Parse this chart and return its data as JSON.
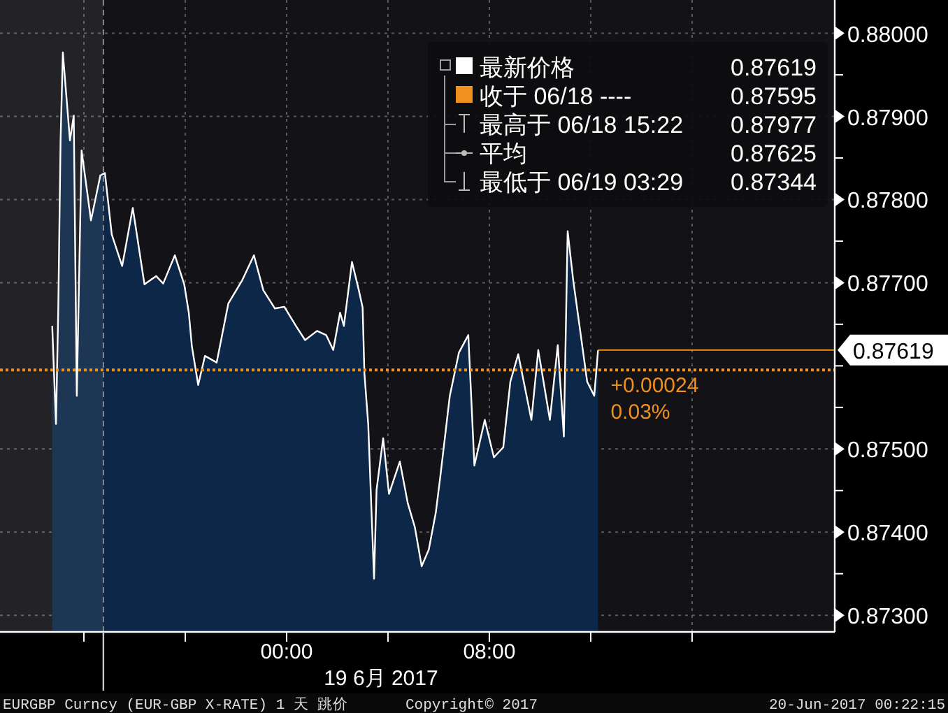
{
  "chart_data": {
    "type": "area",
    "x": [
      -9.25,
      -9.1,
      -9.01,
      -8.92,
      -8.83,
      -8.55,
      -8.4,
      -8.28,
      -8.09,
      -7.72,
      -7.35,
      -7.17,
      -6.9,
      -6.49,
      -6.07,
      -5.61,
      -5.15,
      -4.87,
      -4.41,
      -4.04,
      -3.86,
      -3.74,
      -3.49,
      -3.22,
      -2.76,
      -2.3,
      -1.75,
      -1.29,
      -0.92,
      -0.46,
      -0.09,
      0.37,
      0.73,
      1.2,
      1.56,
      1.84,
      2.11,
      2.26,
      2.58,
      2.85,
      3.0,
      3.07,
      3.22,
      3.45,
      3.55,
      3.81,
      4.04,
      4.47,
      4.78,
      5.06,
      5.33,
      5.61,
      5.89,
      6.07,
      6.44,
      6.8,
      7.17,
      7.41,
      7.82,
      8.18,
      8.55,
      8.83,
      9.14,
      9.66,
      9.93,
      10.39,
      10.7,
      10.94,
      11.09,
      11.31,
      11.59,
      11.86,
      12.14,
      12.29
    ],
    "series": [
      {
        "name": "最新价格",
        "color": "#ffffff",
        "values": [
          0.87648,
          0.8753,
          0.87669,
          0.87871,
          0.87977,
          0.87871,
          0.87901,
          0.87564,
          0.87859,
          0.87775,
          0.87829,
          0.87832,
          0.87758,
          0.8772,
          0.8779,
          0.87698,
          0.87708,
          0.87699,
          0.87733,
          0.87698,
          0.87664,
          0.87624,
          0.87577,
          0.87612,
          0.87604,
          0.87675,
          0.87703,
          0.87733,
          0.87691,
          0.87669,
          0.87671,
          0.87648,
          0.87631,
          0.87642,
          0.87637,
          0.87619,
          0.87664,
          0.87648,
          0.87725,
          0.87691,
          0.8767,
          0.87591,
          0.8753,
          0.87344,
          0.87451,
          0.87513,
          0.87446,
          0.87485,
          0.87435,
          0.87406,
          0.87359,
          0.87379,
          0.87424,
          0.87468,
          0.87564,
          0.87616,
          0.87637,
          0.8748,
          0.87535,
          0.8749,
          0.87502,
          0.87581,
          0.87614,
          0.87535,
          0.87619,
          0.87535,
          0.87625,
          0.87515,
          0.87762,
          0.87703,
          0.87641,
          0.87581,
          0.87564,
          0.87619
        ]
      }
    ],
    "xlim": [
      -11.31,
      21.63
    ],
    "xticks": [
      {
        "value": -8,
        "label": null
      },
      {
        "value": -4,
        "label": null
      },
      {
        "value": 0,
        "label": "00:00"
      },
      {
        "value": 4,
        "label": null
      },
      {
        "value": 8,
        "label": "08:00"
      },
      {
        "value": 12,
        "label": null
      },
      {
        "value": 16,
        "label": null
      }
    ],
    "ylim": [
      0.8728,
      0.8804
    ],
    "yticks": [
      {
        "value": 0.873,
        "label": "0.87300"
      },
      {
        "value": 0.8735,
        "label": null
      },
      {
        "value": 0.874,
        "label": "0.87400"
      },
      {
        "value": 0.8745,
        "label": null
      },
      {
        "value": 0.875,
        "label": "0.87500"
      },
      {
        "value": 0.8755,
        "label": null
      },
      {
        "value": 0.876,
        "label": null
      },
      {
        "value": 0.8765,
        "label": null
      },
      {
        "value": 0.877,
        "label": "0.87700"
      },
      {
        "value": 0.8775,
        "label": null
      },
      {
        "value": 0.878,
        "label": "0.87800"
      },
      {
        "value": 0.8785,
        "label": null
      },
      {
        "value": 0.879,
        "label": "0.87900"
      },
      {
        "value": 0.8795,
        "label": null
      },
      {
        "value": 0.88,
        "label": "0.88000"
      }
    ],
    "grid": true,
    "legend": "top right",
    "ref_lines": [
      {
        "axis": "y",
        "value": 0.87595,
        "label": "收于 06/18 ----",
        "color": "#f0901e",
        "line_style": "dotted"
      },
      {
        "axis": "y",
        "value": 0.87619,
        "label": "0.87619",
        "color": "#f0901e",
        "line_style": "solid"
      },
      {
        "axis": "x",
        "value": -7.23,
        "color": "#8a8a90",
        "line_style": "dashed"
      }
    ],
    "bands": [
      {
        "axis": "x",
        "from": -11.31,
        "to": -7.23,
        "color": "#ffffff"
      }
    ],
    "annotations": [
      "0.87619",
      "0.87595",
      "最高于 06/18 15:22",
      "0.87977",
      "平均",
      "0.87625",
      "最低于 06/19 03:29",
      "0.87344",
      "+0.00024",
      "0.03%",
      "19 6月 2017",
      "EURGBP Curncy (EUR-GBP X-RATE) 1 天  跳价",
      "Copyright© 2017",
      "20-Jun-2017 00:22:15"
    ]
  }
}
